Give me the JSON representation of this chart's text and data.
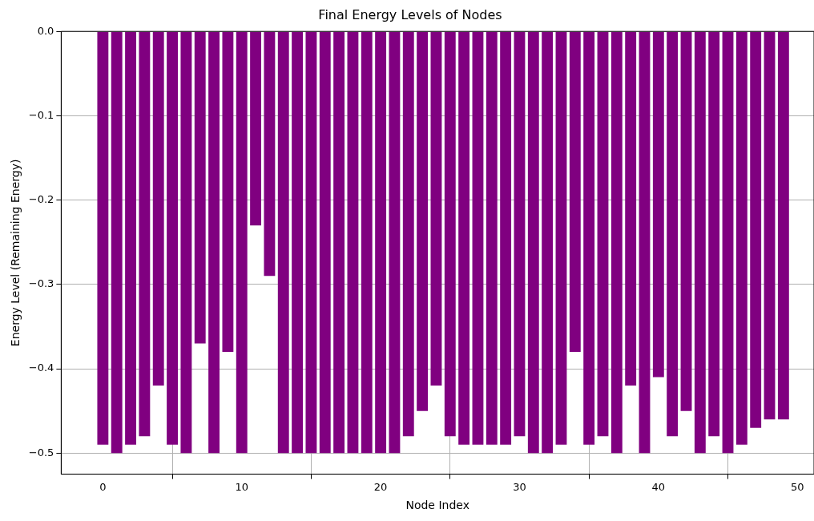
{
  "chart_data": {
    "type": "bar",
    "title": "Final Energy Levels of Nodes",
    "xlabel": "Node Index",
    "ylabel": "Energy Level (Remaining Energy)",
    "x": [
      0,
      1,
      2,
      3,
      4,
      5,
      6,
      7,
      8,
      9,
      10,
      11,
      12,
      13,
      14,
      15,
      16,
      17,
      18,
      19,
      20,
      21,
      22,
      23,
      24,
      25,
      26,
      27,
      28,
      29,
      30,
      31,
      32,
      33,
      34,
      35,
      36,
      37,
      38,
      39,
      40,
      41,
      42,
      43,
      44,
      45,
      46,
      47,
      48,
      49
    ],
    "values": [
      -0.49,
      -0.5,
      -0.49,
      -0.48,
      -0.42,
      -0.49,
      -0.5,
      -0.37,
      -0.5,
      -0.38,
      -0.5,
      -0.23,
      -0.29,
      -0.5,
      -0.5,
      -0.5,
      -0.5,
      -0.5,
      -0.5,
      -0.5,
      -0.5,
      -0.5,
      -0.48,
      -0.45,
      -0.42,
      -0.48,
      -0.49,
      -0.49,
      -0.49,
      -0.49,
      -0.48,
      -0.5,
      -0.5,
      -0.49,
      -0.38,
      -0.49,
      -0.48,
      -0.5,
      -0.42,
      -0.5,
      -0.41,
      -0.48,
      -0.45,
      -0.5,
      -0.48,
      -0.5,
      -0.49,
      -0.47,
      -0.46,
      -0.46
    ],
    "color": "#800080",
    "xlim": [
      -3,
      51.2
    ],
    "xticks": [
      0,
      10,
      20,
      30,
      40,
      50
    ],
    "ylim": [
      -0.525,
      0
    ],
    "yticks": [
      {
        "value": -0.5,
        "label": "−0.5"
      },
      {
        "value": -0.4,
        "label": "−0.4"
      },
      {
        "value": -0.3,
        "label": "−0.3"
      },
      {
        "value": -0.2,
        "label": "−0.2"
      },
      {
        "value": -0.1,
        "label": "−0.1"
      },
      {
        "value": 0,
        "label": "0.0"
      }
    ],
    "grid": true
  }
}
